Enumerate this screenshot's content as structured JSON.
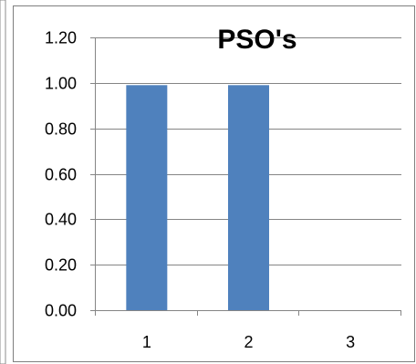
{
  "chart_data": {
    "type": "bar",
    "title": "PSO's",
    "categories": [
      "1",
      "2",
      "3"
    ],
    "values": [
      0.99,
      0.99,
      0
    ],
    "ylim": [
      0,
      1.2
    ],
    "yticks": [
      "0.00",
      "0.20",
      "0.40",
      "0.60",
      "0.80",
      "1.00",
      "1.20"
    ],
    "grid": true,
    "legend": "none",
    "colors": {
      "bar": "#4F81BD",
      "grid": "#858585",
      "border": "#7f7f7f",
      "outer_border": "#8c8c8c"
    }
  }
}
